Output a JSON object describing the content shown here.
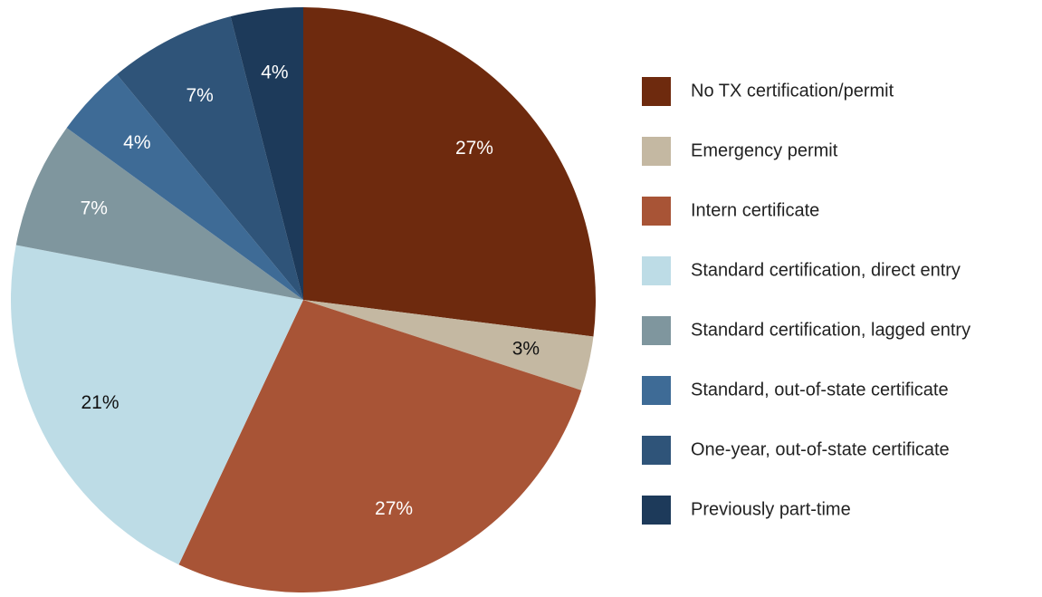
{
  "chart_data": {
    "type": "pie",
    "categories": [
      "No TX certification/permit",
      "Emergency permit",
      "Intern certificate",
      "Standard certification, direct entry",
      "Standard certification, lagged entry",
      "Standard, out-of-state certificate",
      "One-year, out-of-state certificate",
      "Previously part-time"
    ],
    "values": [
      27,
      3,
      27,
      21,
      7,
      4,
      7,
      4
    ],
    "value_labels": [
      "27%",
      "3%",
      "27%",
      "21%",
      "7%",
      "4%",
      "7%",
      "4%"
    ],
    "colors": [
      "#6e2a0e",
      "#c4b8a2",
      "#a85436",
      "#bddce6",
      "#7f969e",
      "#3e6b96",
      "#2f5479",
      "#1d3a5a"
    ],
    "legend": "right"
  }
}
